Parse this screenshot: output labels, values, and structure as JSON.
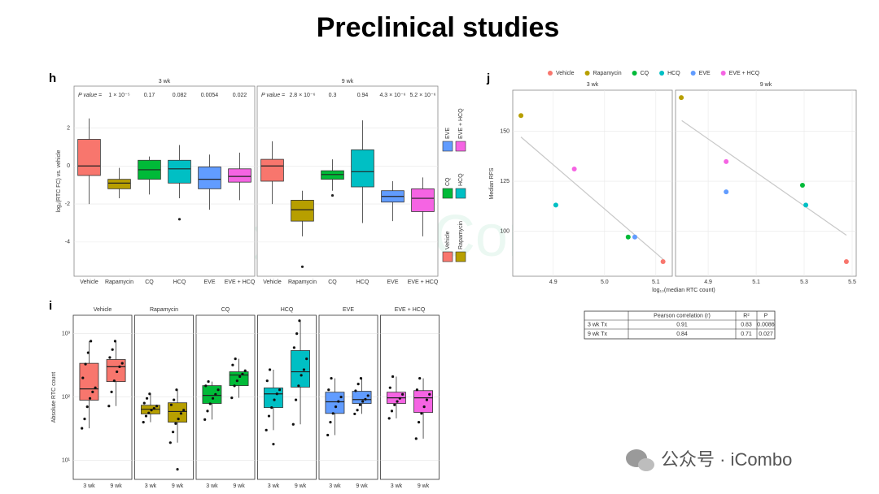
{
  "title": "Preclinical studies",
  "watermark": "公众号 · iCombo",
  "chart_data": [
    {
      "panel": "h",
      "type": "box",
      "y_label": "log₂(RTC FC) vs. vehicle",
      "categories": [
        "Vehicle",
        "Rapamycin",
        "CQ",
        "HCQ",
        "EVE",
        "EVE + HCQ"
      ],
      "colors": [
        "#f8766d",
        "#b79f00",
        "#00ba38",
        "#00bfc4",
        "#619cff",
        "#f564e3"
      ],
      "ylim": [
        -5.8,
        4.2
      ],
      "yticks": [
        2,
        0,
        -2,
        -4
      ],
      "grid": true,
      "p_label": "P value =",
      "facets": [
        {
          "title": "3 wk",
          "p_values": [
            "1 × 10⁻⁵",
            "0.17",
            "0.082",
            "0.0054",
            "0.022"
          ],
          "boxes": [
            {
              "low": -2.0,
              "q1": -0.5,
              "median": 0,
              "q3": 1.4,
              "high": 2.5,
              "outliers": []
            },
            {
              "low": -1.7,
              "q1": -1.2,
              "median": -0.9,
              "q3": -0.7,
              "high": -0.1,
              "outliers": []
            },
            {
              "low": -1.5,
              "q1": -0.7,
              "median": -0.2,
              "q3": 0.3,
              "high": 0.5,
              "outliers": []
            },
            {
              "low": -1.7,
              "q1": -0.9,
              "median": -0.15,
              "q3": 0.3,
              "high": 1.1,
              "outliers": [
                -2.8
              ]
            },
            {
              "low": -2.3,
              "q1": -1.2,
              "median": -0.7,
              "q3": -0.05,
              "high": 0.6,
              "outliers": []
            },
            {
              "low": -1.8,
              "q1": -0.85,
              "median": -0.55,
              "q3": -0.15,
              "high": 0.7,
              "outliers": []
            }
          ]
        },
        {
          "title": "9 wk",
          "p_values": [
            "2.8 × 10⁻⁶",
            "0.3",
            "0.94",
            "4.3 × 10⁻⁶",
            "5.2 × 10⁻⁶"
          ],
          "boxes": [
            {
              "low": -2.0,
              "q1": -0.8,
              "median": 0,
              "q3": 0.35,
              "high": 1.3,
              "outliers": []
            },
            {
              "low": -3.7,
              "q1": -2.9,
              "median": -2.3,
              "q3": -1.8,
              "high": -1.3,
              "outliers": [
                -5.3
              ]
            },
            {
              "low": -1.3,
              "q1": -0.7,
              "median": -0.45,
              "q3": -0.25,
              "high": 0.35,
              "outliers": [
                -1.55
              ]
            },
            {
              "low": -3.0,
              "q1": -1.1,
              "median": -0.3,
              "q3": 0.85,
              "high": 2.4,
              "outliers": []
            },
            {
              "low": -2.9,
              "q1": -1.9,
              "median": -1.6,
              "q3": -1.3,
              "high": -0.8,
              "outliers": []
            },
            {
              "low": -3.7,
              "q1": -2.4,
              "median": -1.7,
              "q3": -1.2,
              "high": -0.6,
              "outliers": []
            }
          ]
        }
      ]
    },
    {
      "panel": "i",
      "type": "box",
      "y_label": "Absolute RTC count",
      "log_scale": true,
      "colors": [
        "#f8766d",
        "#b79f00",
        "#00ba38",
        "#00bfc4",
        "#619cff",
        "#f564e3"
      ],
      "ylim": [
        5,
        1950
      ],
      "yticks": [
        {
          "value": 10,
          "label": "10¹"
        },
        {
          "value": 100,
          "label": "10²"
        },
        {
          "value": 1000,
          "label": "10³"
        }
      ],
      "grid": true,
      "groups": [
        "3 wk",
        "9 wk"
      ],
      "facets": [
        {
          "title": "Vehicle",
          "boxes": [
            {
              "low": 32,
              "q1": 89,
              "median": 134,
              "q3": 340,
              "high": 760,
              "outliers": [],
              "points": [
                32,
                45,
                70,
                95,
                120,
                140,
                200,
                330,
                500,
                760
              ]
            },
            {
              "low": 72,
              "q1": 175,
              "median": 300,
              "q3": 390,
              "high": 760,
              "outliers": [],
              "points": [
                72,
                120,
                180,
                250,
                300,
                340,
                420,
                560,
                760
              ]
            }
          ]
        },
        {
          "title": "Rapamycin",
          "boxes": [
            {
              "low": 40,
              "q1": 54,
              "median": 64,
              "q3": 74,
              "high": 112,
              "outliers": [],
              "points": [
                40,
                50,
                56,
                62,
                66,
                72,
                80,
                95,
                112
              ]
            },
            {
              "low": 19,
              "q1": 40,
              "median": 59,
              "q3": 81,
              "high": 130,
              "outliers": [
                7.2
              ],
              "points": [
                19,
                28,
                38,
                45,
                55,
                62,
                75,
                90,
                130
              ]
            }
          ]
        },
        {
          "title": "CQ",
          "boxes": [
            {
              "low": 44,
              "q1": 79,
              "median": 106,
              "q3": 151,
              "high": 175,
              "outliers": [],
              "points": [
                44,
                60,
                78,
                95,
                110,
                130,
                150,
                175
              ]
            },
            {
              "low": 97,
              "q1": 151,
              "median": 222,
              "q3": 250,
              "high": 400,
              "outliers": [],
              "points": [
                97,
                150,
                180,
                210,
                230,
                260,
                320,
                400
              ]
            }
          ]
        },
        {
          "title": "HCQ",
          "boxes": [
            {
              "low": 30,
              "q1": 68,
              "median": 112,
              "q3": 139,
              "high": 270,
              "outliers": [
                18
              ],
              "points": [
                30,
                50,
                68,
                90,
                112,
                130,
                180,
                270
              ]
            },
            {
              "low": 37,
              "q1": 143,
              "median": 250,
              "q3": 540,
              "high": 1600,
              "outliers": [],
              "points": [
                37,
                90,
                150,
                220,
                270,
                400,
                600,
                1000,
                1600
              ]
            }
          ]
        },
        {
          "title": "EVE",
          "boxes": [
            {
              "low": 25,
              "q1": 55,
              "median": 84,
              "q3": 119,
              "high": 197,
              "outliers": [],
              "points": [
                25,
                40,
                55,
                70,
                85,
                100,
                130,
                197
              ]
            },
            {
              "low": 54,
              "q1": 79,
              "median": 91,
              "q3": 123,
              "high": 197,
              "outliers": [],
              "points": [
                54,
                62,
                75,
                85,
                92,
                105,
                125,
                160,
                197
              ]
            }
          ]
        },
        {
          "title": "EVE + HCQ",
          "boxes": [
            {
              "low": 46,
              "q1": 79,
              "median": 97,
              "q3": 119,
              "high": 210,
              "outliers": [],
              "points": [
                46,
                60,
                75,
                85,
                95,
                110,
                140,
                210
              ]
            },
            {
              "low": 22,
              "q1": 57,
              "median": 97,
              "q3": 126,
              "high": 197,
              "outliers": [],
              "points": [
                22,
                40,
                55,
                70,
                90,
                110,
                130,
                197
              ]
            }
          ]
        }
      ]
    },
    {
      "panel": "j",
      "type": "scatter",
      "x_label": "log₁₀(median RTC count)",
      "y_label": "Median RFS",
      "legend": [
        "Vehicle",
        "Rapamycin",
        "CQ",
        "HCQ",
        "EVE",
        "EVE + HCQ"
      ],
      "colors": [
        "#f8766d",
        "#b79f00",
        "#00ba38",
        "#00bfc4",
        "#619cff",
        "#f564e3"
      ],
      "ylim": [
        77.5,
        170.5
      ],
      "yticks": [
        100,
        125,
        150
      ],
      "grid": true,
      "facets": [
        {
          "title": "3 wk",
          "xlim": [
            4.821,
            5.132
          ],
          "xticks": [
            4.9,
            {
              "value": 5,
              "label": "5.0"
            },
            5.1
          ],
          "x": [
            5.114,
            4.837,
            5.046,
            4.905,
            5.059,
            4.941
          ],
          "y": [
            84.8,
            157.8,
            97.1,
            113.1,
            97.1,
            131.1
          ],
          "fit": {
            "x": [
              4.837,
              5.114
            ],
            "y": [
              147.1,
              86
            ]
          }
        },
        {
          "title": "9 wk",
          "xlim": [
            4.764,
            5.517
          ],
          "xticks": [
            4.9,
            5.1,
            5.3,
            5.5
          ],
          "x": [
            5.476,
            4.788,
            5.293,
            5.307,
            4.975,
            4.975
          ],
          "y": [
            84.8,
            166.8,
            123,
            113.1,
            119.7,
            134.8
          ],
          "fit": {
            "x": [
              4.79,
              5.476
            ],
            "y": [
              155.3,
              98
            ]
          }
        }
      ]
    }
  ],
  "table": {
    "columns": [
      "Pearson correlation (r)",
      "R²",
      "P"
    ],
    "rows": [
      {
        "label": "3 wk Tx",
        "cells": [
          "0.91",
          "0.83",
          "0.0086"
        ]
      },
      {
        "label": "9 wk Tx",
        "cells": [
          "0.84",
          "0.71",
          "0.027"
        ]
      }
    ]
  }
}
